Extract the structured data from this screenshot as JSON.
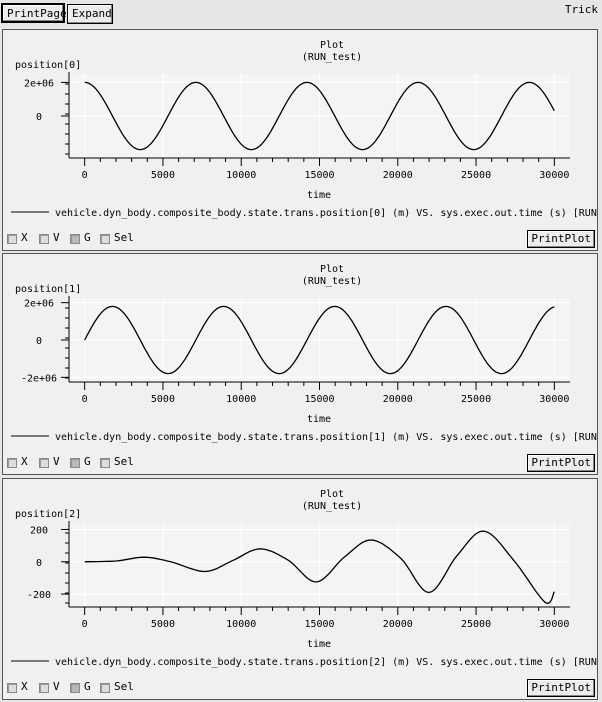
{
  "toolbar": {
    "print_page_label": "PrintPage",
    "expand_label": "Expand",
    "app_name": "Trick"
  },
  "controls": {
    "x": "X",
    "v": "V",
    "g": "G",
    "sel": "Sel",
    "g_checked": true,
    "print_plot_label": "PrintPlot"
  },
  "plots": [
    {
      "title": "Plot",
      "subtitle": "(RUN_test)",
      "ylabel": "position[0]",
      "xlabel": "time",
      "legend": "vehicle.dyn_body.composite_body.state.trans.position[0] (m) VS. sys.exec.out.time (s) [RUN_"
    },
    {
      "title": "Plot",
      "subtitle": "(RUN_test)",
      "ylabel": "position[1]",
      "xlabel": "time",
      "legend": "vehicle.dyn_body.composite_body.state.trans.position[1] (m) VS. sys.exec.out.time (s) [RUN_"
    },
    {
      "title": "Plot",
      "subtitle": "(RUN_test)",
      "ylabel": "position[2]",
      "xlabel": "time",
      "legend": "vehicle.dyn_body.composite_body.state.trans.position[2] (m) VS. sys.exec.out.time (s) [RUN_"
    }
  ],
  "chart_data": [
    {
      "type": "line",
      "title": "Plot",
      "subtitle": "(RUN_test)",
      "xlabel": "time",
      "ylabel": "position[0]",
      "xlim": [
        -1000,
        31000
      ],
      "ylim": [
        -2500000,
        2500000
      ],
      "grid": true,
      "x_ticks": [
        0,
        5000,
        10000,
        15000,
        20000,
        25000,
        30000
      ],
      "y_ticks": [
        {
          "v": 2000000,
          "label": "2e+06"
        },
        {
          "v": 0,
          "label": "0"
        }
      ],
      "series": [
        {
          "name": "vehicle.dyn_body.composite_body.state.trans.position[0]",
          "model": "cos",
          "amplitude": 2000000,
          "period": 7100,
          "x_end": 30000
        }
      ]
    },
    {
      "type": "line",
      "title": "Plot",
      "subtitle": "(RUN_test)",
      "xlabel": "time",
      "ylabel": "position[1]",
      "xlim": [
        -1000,
        31000
      ],
      "ylim": [
        -2250000,
        2250000
      ],
      "grid": true,
      "x_ticks": [
        0,
        5000,
        10000,
        15000,
        20000,
        25000,
        30000
      ],
      "y_ticks": [
        {
          "v": 2000000,
          "label": "2e+06"
        },
        {
          "v": 0,
          "label": "0"
        },
        {
          "v": -2000000,
          "label": "-2e+06"
        }
      ],
      "series": [
        {
          "name": "vehicle.dyn_body.composite_body.state.trans.position[1]",
          "model": "sin",
          "amplitude": 1800000,
          "period": 7100,
          "x_end": 30000
        }
      ]
    },
    {
      "type": "line",
      "title": "Plot",
      "subtitle": "(RUN_test)",
      "xlabel": "time",
      "ylabel": "position[2]",
      "xlim": [
        -1000,
        31000
      ],
      "ylim": [
        -280,
        240
      ],
      "grid": true,
      "x_ticks": [
        0,
        5000,
        10000,
        15000,
        20000,
        25000,
        30000
      ],
      "y_ticks": [
        {
          "v": 200,
          "label": "200"
        },
        {
          "v": 0,
          "label": "0"
        },
        {
          "v": -200,
          "label": "-200"
        }
      ],
      "series": [
        {
          "name": "vehicle.dyn_body.composite_body.state.trans.position[2]",
          "model": "growing",
          "points": [
            [
              0,
              0
            ],
            [
              2000,
              5
            ],
            [
              3800,
              28
            ],
            [
              5500,
              0
            ],
            [
              7700,
              -60
            ],
            [
              9500,
              10
            ],
            [
              11200,
              80
            ],
            [
              13000,
              10
            ],
            [
              14800,
              -125
            ],
            [
              16600,
              30
            ],
            [
              18300,
              135
            ],
            [
              20200,
              20
            ],
            [
              22000,
              -190
            ],
            [
              23800,
              40
            ],
            [
              25500,
              190
            ],
            [
              27400,
              10
            ],
            [
              29400,
              -250
            ],
            [
              30000,
              -185
            ]
          ]
        }
      ]
    }
  ]
}
